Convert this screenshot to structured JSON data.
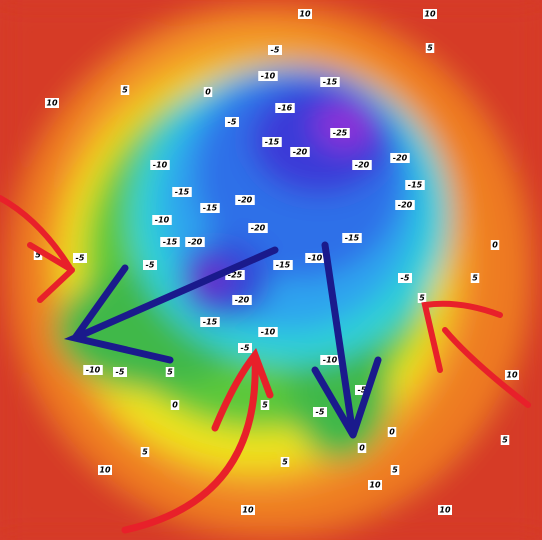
{
  "contour_labels": [
    "10",
    "10",
    "-5",
    "5",
    "-10",
    "-15",
    "0",
    "5",
    "10",
    "-5",
    "-16",
    "-25",
    "-15",
    "-10",
    "-20",
    "-20",
    "-20",
    "-15",
    "-20",
    "-20",
    "-15",
    "-15",
    "-10",
    "-15",
    "-20",
    "-20",
    "-15",
    "5",
    "-5",
    "-5",
    "-15",
    "-10",
    "-5",
    "-25",
    "-20",
    "5",
    "5",
    "-15",
    "-10",
    "-5",
    "-10",
    "-5",
    "-10",
    "5",
    "0",
    "5",
    "-5",
    "-5",
    "0",
    "0",
    "5",
    "10",
    "5",
    "5",
    "10",
    "10",
    "10",
    "5",
    "0",
    "10"
  ]
}
